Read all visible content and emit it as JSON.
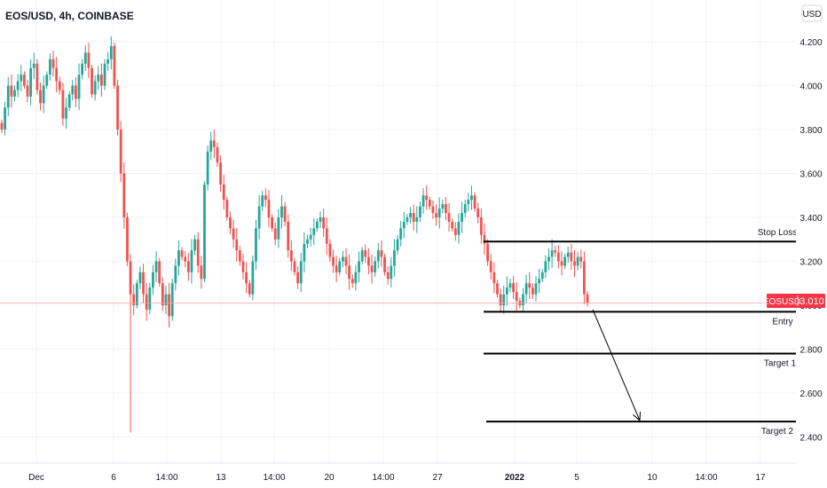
{
  "header": {
    "symbol_title": "EOS/USD, 4h, COINBASE"
  },
  "currency_button": {
    "label": "USD"
  },
  "price_axis": {
    "ticks": [
      "4.200",
      "4.000",
      "3.800",
      "3.600",
      "3.400",
      "3.200",
      "3.000",
      "2.800",
      "2.600",
      "2.400"
    ]
  },
  "time_axis": {
    "ticks": [
      "Dec",
      "6",
      "14:00",
      "13",
      "14:00",
      "20",
      "14:00",
      "27",
      "2022",
      "5",
      "10",
      "14:00",
      "17"
    ]
  },
  "current_price": {
    "symbol": "EOSUSD",
    "value": "3.010"
  },
  "levels": [
    {
      "name": "Stop Loss",
      "price": "3.290"
    },
    {
      "name": "Entry",
      "price": "2.970"
    },
    {
      "name": "Target 1",
      "price": "2.780"
    },
    {
      "name": "Target 2",
      "price": "2.470"
    }
  ],
  "colors": {
    "up": "#26a69a",
    "down": "#ef5350",
    "line": "#000000",
    "grid": "#f0f3fa",
    "current": "#f23645"
  },
  "chart_data": {
    "type": "candlestick",
    "title": "EOS/USD, 4h, COINBASE",
    "ylim": [
      2.32,
      4.3
    ],
    "closes": [
      3.8,
      3.9,
      4.0,
      3.95,
      3.98,
      4.02,
      4.05,
      4.0,
      3.95,
      4.08,
      4.1,
      3.98,
      3.92,
      4.0,
      4.05,
      4.12,
      4.08,
      4.02,
      3.98,
      3.85,
      3.9,
      3.96,
      4.0,
      3.94,
      4.05,
      4.1,
      4.15,
      4.08,
      3.96,
      4.02,
      4.05,
      4.0,
      4.1,
      4.12,
      4.18,
      4.0,
      3.8,
      3.6,
      3.4,
      3.2,
      3.05,
      3.0,
      3.1,
      3.15,
      3.05,
      2.98,
      3.08,
      3.15,
      3.2,
      3.1,
      3.0,
      3.05,
      2.95,
      3.1,
      3.18,
      3.25,
      3.22,
      3.2,
      3.15,
      3.25,
      3.3,
      3.18,
      3.12,
      3.55,
      3.7,
      3.75,
      3.72,
      3.65,
      3.55,
      3.48,
      3.4,
      3.35,
      3.3,
      3.25,
      3.2,
      3.15,
      3.1,
      3.05,
      3.2,
      3.35,
      3.45,
      3.5,
      3.48,
      3.4,
      3.35,
      3.3,
      3.4,
      3.45,
      3.38,
      3.25,
      3.2,
      3.15,
      3.1,
      3.2,
      3.28,
      3.3,
      3.32,
      3.35,
      3.38,
      3.4,
      3.35,
      3.28,
      3.22,
      3.18,
      3.15,
      3.2,
      3.22,
      3.18,
      3.12,
      3.1,
      3.15,
      3.2,
      3.25,
      3.22,
      3.18,
      3.15,
      3.2,
      3.25,
      3.22,
      3.15,
      3.12,
      3.18,
      3.25,
      3.3,
      3.35,
      3.38,
      3.4,
      3.42,
      3.38,
      3.4,
      3.45,
      3.5,
      3.48,
      3.45,
      3.42,
      3.4,
      3.44,
      3.46,
      3.42,
      3.38,
      3.35,
      3.32,
      3.38,
      3.42,
      3.46,
      3.48,
      3.5,
      3.44,
      3.4,
      3.32,
      3.28,
      3.2,
      3.15,
      3.1,
      3.05,
      3.0,
      3.05,
      3.08,
      3.1,
      3.06,
      3.02,
      3.0,
      3.05,
      3.1,
      3.08,
      3.05,
      3.1,
      3.12,
      3.15,
      3.2,
      3.22,
      3.25,
      3.24,
      3.2,
      3.18,
      3.22,
      3.24,
      3.2,
      3.18,
      3.22,
      3.2,
      3.05,
      3.01
    ],
    "levels": [
      {
        "name": "Stop Loss",
        "value": 3.29
      },
      {
        "name": "Entry",
        "value": 2.97
      },
      {
        "name": "Target 1",
        "value": 2.78
      },
      {
        "name": "Target 2",
        "value": 2.47
      }
    ],
    "current_value": 3.01
  }
}
